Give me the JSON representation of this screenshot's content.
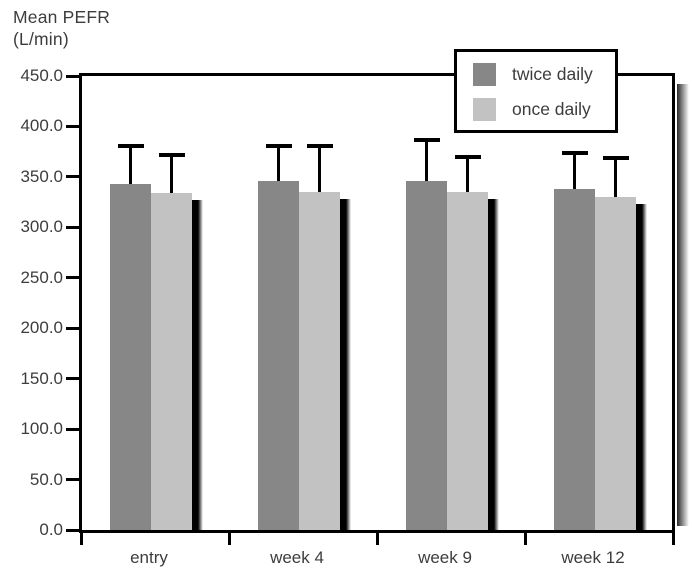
{
  "chart_data": {
    "type": "bar",
    "title": "Mean PEFR (L/min)",
    "ylabel_line1": "Mean PEFR",
    "ylabel_line2": "(L/min)",
    "xlabel": "",
    "categories": [
      "entry",
      "week 4",
      "week 9",
      "week 12"
    ],
    "series": [
      {
        "name": "twice daily",
        "color": "#878787",
        "values": [
          343,
          346,
          346,
          338
        ],
        "error_bar_tops": [
          381,
          381,
          387,
          374
        ]
      },
      {
        "name": "once daily",
        "color": "#c2c2c2",
        "values": [
          334,
          335,
          335,
          330
        ],
        "error_bar_tops": [
          372,
          381,
          370,
          369
        ]
      }
    ],
    "ylim": [
      0,
      450
    ],
    "y_tick_labels": [
      "450.0",
      "400.0",
      "350.0",
      "300.0",
      "250.0",
      "200.0",
      "150.0",
      "100.0",
      "50.0",
      "0.0"
    ],
    "grid": false,
    "legend_position": "top-right",
    "error_bars": "upper-only",
    "bar_shadow_color": "#000000"
  },
  "colors": {
    "axis": "#000000",
    "text": "#3d3d3d",
    "background": "#ffffff"
  }
}
